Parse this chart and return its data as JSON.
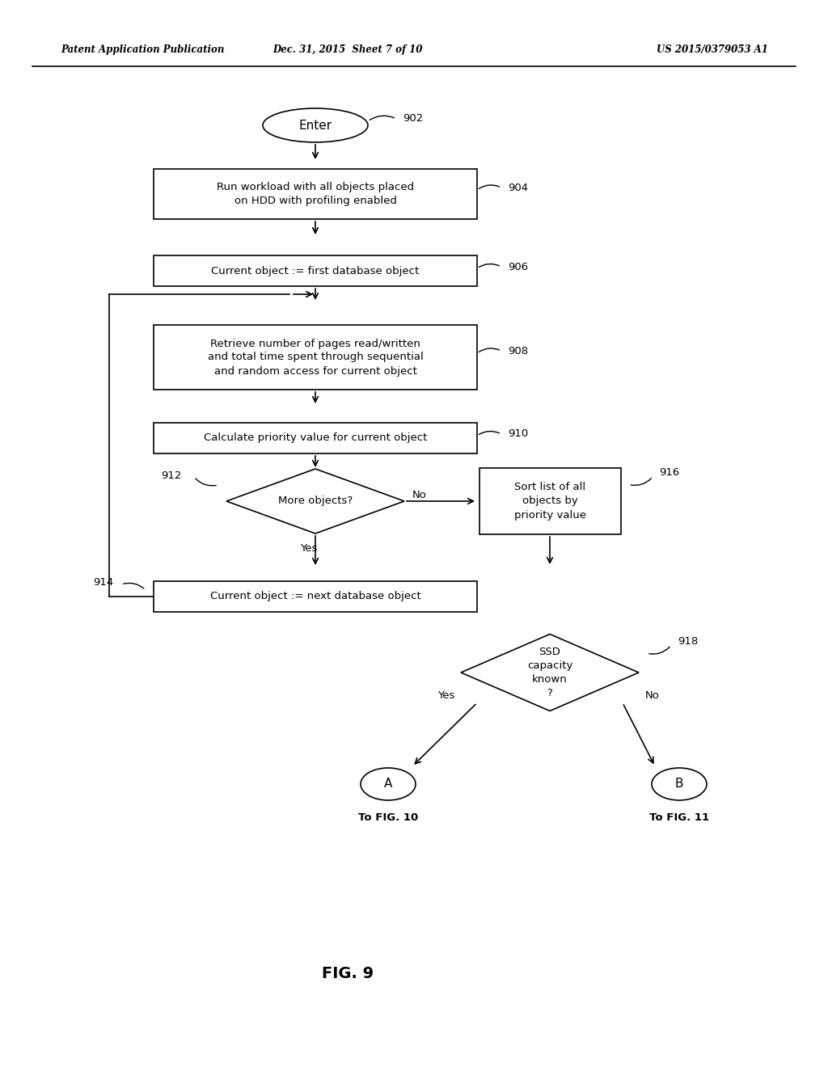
{
  "bg_color": "#ffffff",
  "text_color": "#000000",
  "header_left": "Patent Application Publication",
  "header_center": "Dec. 31, 2015  Sheet 7 of 10",
  "header_right": "US 2015/0379053 A1",
  "fig_label": "FIG. 9",
  "enter_label": "Enter",
  "ref902": "902",
  "box904_label": "Run workload with all objects placed\non HDD with profiling enabled",
  "ref904": "904",
  "box906_label": "Current object := first database object",
  "ref906": "906",
  "box908_label": "Retrieve number of pages read/written\nand total time spent through sequential\nand random access for current object",
  "ref908": "908",
  "box910_label": "Calculate priority value for current object",
  "ref910": "910",
  "dia912_label": "More objects?",
  "ref912": "912",
  "box916_label": "Sort list of all\nobjects by\npriority value",
  "ref916": "916",
  "box914_label": "Current object := next database object",
  "ref914": "914",
  "dia918_label": "SSD\ncapacity\nknown\n?",
  "ref918": "918",
  "circA_label": "A",
  "circB_label": "B",
  "labelA": "To FIG. 10",
  "labelB": "To FIG. 11",
  "yes_label": "Yes",
  "no_label": "No"
}
